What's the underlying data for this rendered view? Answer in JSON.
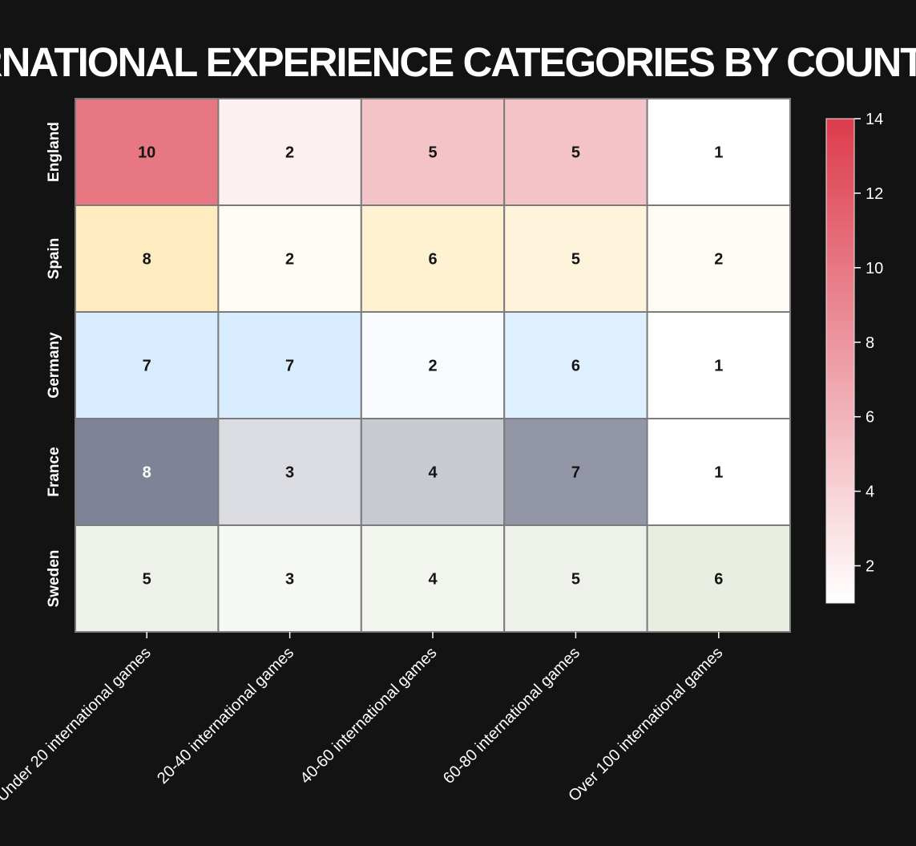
{
  "chart_data": {
    "type": "heatmap",
    "title": "INTERNATIONAL EXPERIENCE CATEGORIES BY COUNTRY",
    "xlabel": "",
    "ylabel": "",
    "categories": [
      "Under 20 international games",
      "20-40 international games",
      "40-60 international games",
      "60-80 international games",
      "Over 100 international games"
    ],
    "rows": [
      "England",
      "Spain",
      "Germany",
      "France",
      "Sweden"
    ],
    "series": [
      {
        "name": "England",
        "values": [
          10,
          2,
          5,
          5,
          1
        ],
        "color": "#dc3b4c"
      },
      {
        "name": "Spain",
        "values": [
          8,
          2,
          6,
          5,
          2
        ],
        "color": "#fddc8a"
      },
      {
        "name": "Germany",
        "values": [
          7,
          7,
          2,
          6,
          1
        ],
        "color": "#a9d7ff"
      },
      {
        "name": "France",
        "values": [
          8,
          3,
          4,
          7,
          1
        ],
        "color": "#12193e"
      },
      {
        "name": "Sweden",
        "values": [
          5,
          3,
          4,
          5,
          6
        ],
        "color": "#c6d3b6"
      }
    ],
    "colorbar": {
      "vmin": 1,
      "vmax": 14,
      "ticks": [
        2,
        4,
        6,
        8,
        10,
        12,
        14
      ],
      "color_low": "#ffffff",
      "color_high": "#dc3b4c"
    },
    "grid": true,
    "legend": "right"
  },
  "colors": {
    "background": "#131313",
    "cell_border": "#7b7b7b",
    "text_light": "#ffffff",
    "text_dark": "#141414"
  }
}
